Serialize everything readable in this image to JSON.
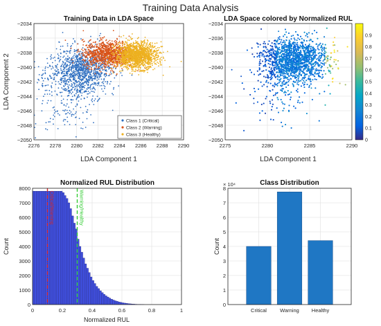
{
  "figure": {
    "title": "Training Data Analysis"
  },
  "colors": {
    "class1": "#2f6fc0",
    "class2": "#d95319",
    "class3": "#edb120",
    "hist_fill": "#4050e0",
    "hist_edge": "#2a2a7a",
    "bar_fill": "#1f77c4",
    "line_red": "#d62728",
    "line_green": "#33cc33"
  },
  "chart_data": [
    {
      "type": "scatter",
      "title": "Training Data in LDA Space",
      "xlabel": "LDA Component 1",
      "ylabel": "LDA Component 2",
      "xlim": [
        2276,
        2290
      ],
      "ylim": [
        -2050,
        -2034
      ],
      "xticks": [
        2276,
        2278,
        2280,
        2282,
        2284,
        2286,
        2288,
        2290
      ],
      "yticks": [
        -2050,
        -2048,
        -2046,
        -2044,
        -2042,
        -2040,
        -2038,
        -2036,
        -2034
      ],
      "grid": true,
      "legend_position": "bottom-right",
      "series": [
        {
          "name": "Class 1 (Critical)",
          "center": [
            2280.5,
            -2040.5
          ],
          "spread": [
            1.9,
            2.1
          ]
        },
        {
          "name": "Class 2 (Warning)",
          "center": [
            2283.0,
            -2038.2
          ],
          "spread": [
            1.6,
            1.2
          ]
        },
        {
          "name": "Class 3 (Healthy)",
          "center": [
            2285.6,
            -2038.4
          ],
          "spread": [
            1.3,
            1.2
          ]
        }
      ]
    },
    {
      "type": "scatter",
      "title": "LDA Space colored by Normalized RUL",
      "xlabel": "LDA Component 1",
      "ylabel": "",
      "xlim": [
        2275,
        2290
      ],
      "ylim": [
        -2050,
        -2034
      ],
      "xticks": [
        2275,
        2280,
        2285,
        2290
      ],
      "yticks": [
        -2050,
        -2048,
        -2046,
        -2044,
        -2042,
        -2040,
        -2038,
        -2036,
        -2034
      ],
      "grid": true,
      "colorbar": {
        "range": [
          0,
          1
        ],
        "ticks": [
          "0",
          "0.1",
          "0.2",
          "0.3",
          "0.4",
          "0.5",
          "0.6",
          "0.7",
          "0.8",
          "0.9"
        ],
        "colormap": "parula"
      }
    },
    {
      "type": "bar",
      "title": "Normalized RUL Distribution",
      "xlabel": "Normalized RUL",
      "ylabel": "Count",
      "xlim": [
        0,
        1
      ],
      "ylim": [
        0,
        8000
      ],
      "xticks": [
        "0",
        "0.2",
        "0.4",
        "0.6",
        "0.8",
        "1"
      ],
      "yticks": [
        "0",
        "1000",
        "2000",
        "3000",
        "4000",
        "5000",
        "6000",
        "7000",
        "8000"
      ],
      "grid": true,
      "bin_width": 0.0125,
      "values": [
        7800,
        7800,
        7800,
        7800,
        7800,
        7800,
        7800,
        7800,
        7800,
        7800,
        7800,
        7800,
        7800,
        7800,
        7800,
        7800,
        7700,
        7500,
        7300,
        7000,
        6600,
        6100,
        5600,
        5200,
        4500,
        4000,
        3600,
        3200,
        2800,
        2500,
        2200,
        1900,
        1650,
        1450,
        1250,
        1100,
        950,
        820,
        700,
        600,
        520,
        440,
        370,
        310,
        260,
        220,
        180,
        150,
        120,
        100,
        80,
        65,
        52,
        40,
        30,
        22,
        15,
        10,
        6,
        3
      ],
      "threshold_lines": [
        {
          "x": 0.1,
          "label": "Critical/Warning",
          "style": "red-dashdot"
        },
        {
          "x": 0.3,
          "label": "Warning/Healthy",
          "style": "green-dash"
        }
      ]
    },
    {
      "type": "bar",
      "title": "Class Distribution",
      "xlabel": "",
      "ylabel": "Count",
      "categories": [
        "Critical",
        "Warning",
        "Healthy"
      ],
      "values": [
        40000,
        77500,
        44000
      ],
      "ylim": [
        0,
        80000
      ],
      "yticks": [
        "0",
        "1",
        "2",
        "3",
        "4",
        "5",
        "6",
        "7",
        "8"
      ],
      "y_exponent": "× 10⁴",
      "grid": true
    }
  ]
}
